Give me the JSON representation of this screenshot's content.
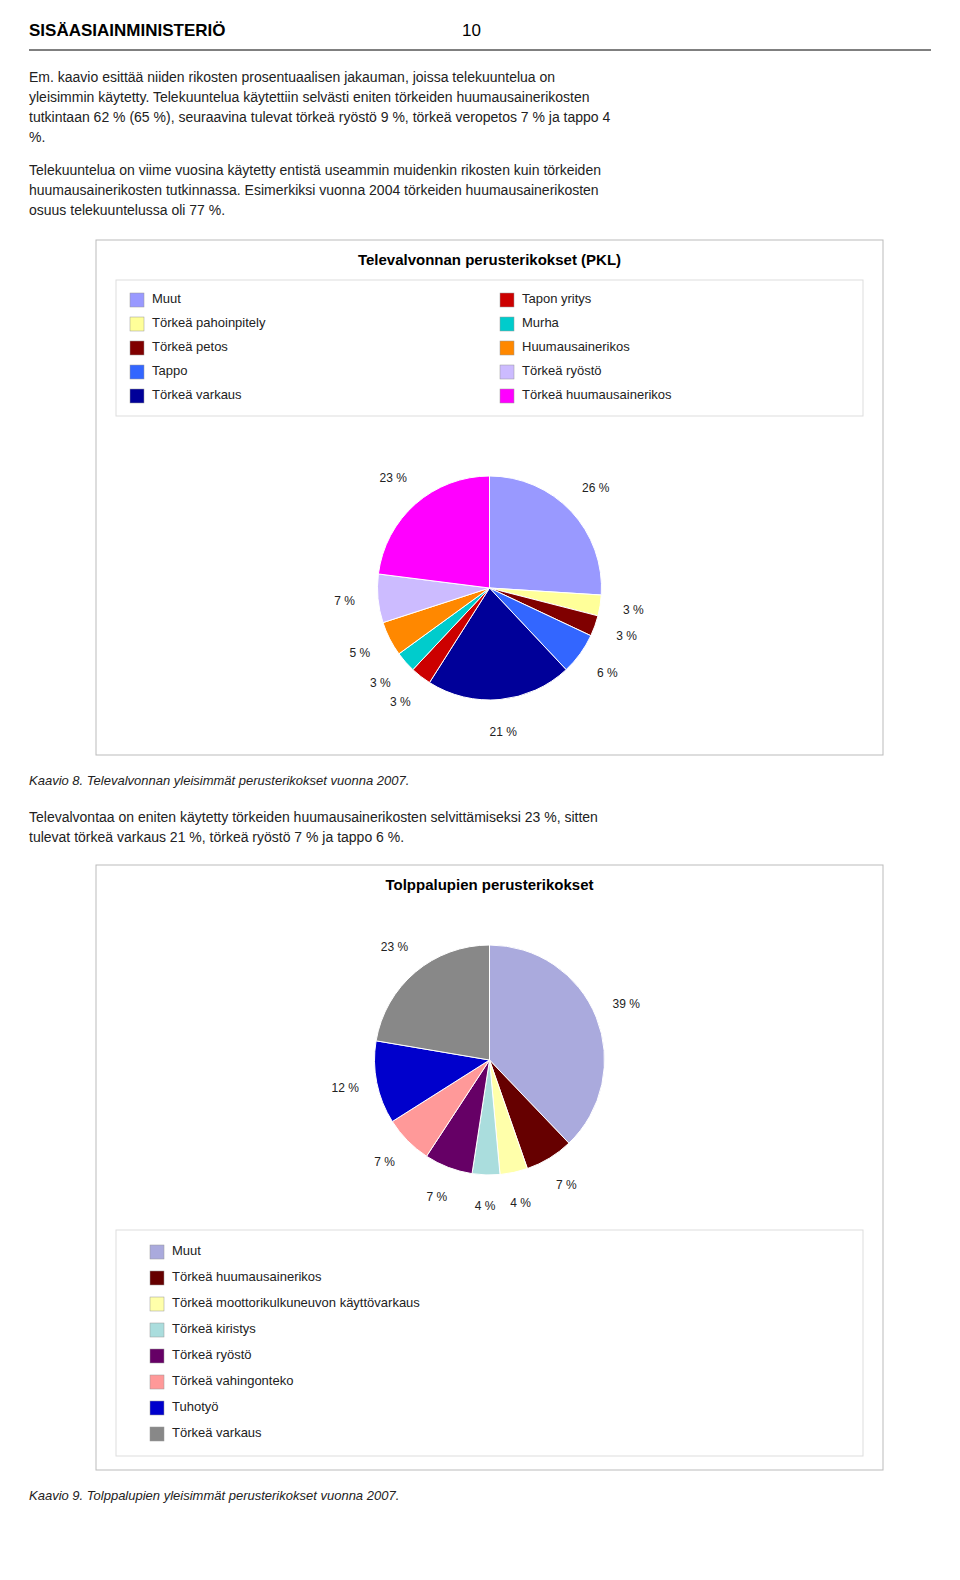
{
  "header_left": "SISÄASIAINMINISTERIÖ",
  "header_right": "10",
  "paragraphs": [
    "Em. kaavio esittää niiden rikosten prosentuaalisen jakauman, joissa telekuuntelua on\nyleisimmin käytetty. Telekuuntelua käytettiin selvästi eniten törkeiden huumausainerikosten\ntutkintaan 62 % (65 %), seuraavina tulevat törkeä ryöstö 9 %, törkeä veropetos 7 % ja tappo 4\n%.",
    "Telekuuntelua on viime vuosina käytetty entistä useammin muidenkin rikosten kuin törkeiden\nhuumausainerikosten tutkinnassa. Esimerkiksi vuonna 2004 törkeiden huumausainerikosten\nosuus telekuuntelussa oli 77 %.",
    "Televalvontaa on eniten käytetty törkeiden huumausainerikosten selvittämiseksi 23 %, sitten\ntulevat törkeä varkaus 21 %, törkeä ryöstö 7 % ja tappo 6 %."
  ],
  "chart_data": [
    {
      "type": "pie",
      "title": "Televalvonnan perusterikokset (PKL)",
      "categories": [
        "Muut",
        "Törkeä pahoinpitely",
        "Törkeä petos",
        "Tappo",
        "Törkeä varkaus",
        "Tapon yritys",
        "Murha",
        "Huumausainerikos",
        "Törkeä ryöstö",
        "Törkeä huumausainerikos"
      ],
      "values": [
        26,
        3,
        3,
        6,
        21,
        3,
        3,
        5,
        7,
        23
      ],
      "value_labels": [
        "26 %",
        "3 %",
        "3 %",
        "6 %",
        "21 %",
        "3 %",
        "3 %",
        "5 %",
        "7 %",
        "23 %"
      ],
      "colors": [
        "#9999FF",
        "#FFFF99",
        "#800000",
        "#3366FF",
        "#000099",
        "#CC0000",
        "#00CCCC",
        "#FF8800",
        "#CCBBFF",
        "#FF00FF"
      ],
      "data_labels": true,
      "caption": "Kaavio 8. Televalvonnan yleisimmät perusterikokset vuonna 2007."
    },
    {
      "type": "pie",
      "title": "Tolppalupien perusterikokset",
      "categories": [
        "Muut",
        "Törkeä huumausainerikos",
        "Törkeä moottorikulkuneuvon käyttövarkaus",
        "Törkeä kiristys",
        "Törkeä ryöstö",
        "Törkeä vahingonteko",
        "Tuhotyö",
        "Törkeä varkaus"
      ],
      "values": [
        39,
        7,
        4,
        4,
        7,
        7,
        12,
        23
      ],
      "value_labels": [
        "39 %",
        "7 %",
        "4 %",
        "4 %",
        "7 %",
        "7 %",
        "12 %",
        "23 %"
      ],
      "colors": [
        "#AAAADD",
        "#660000",
        "#FFFFAA",
        "#AADDDD",
        "#660066",
        "#FF9999",
        "#0000CC",
        "#888888"
      ],
      "data_labels": true,
      "caption": "Kaavio 9. Tolppalupien yleisimmät perusterikokset vuonna 2007."
    }
  ]
}
